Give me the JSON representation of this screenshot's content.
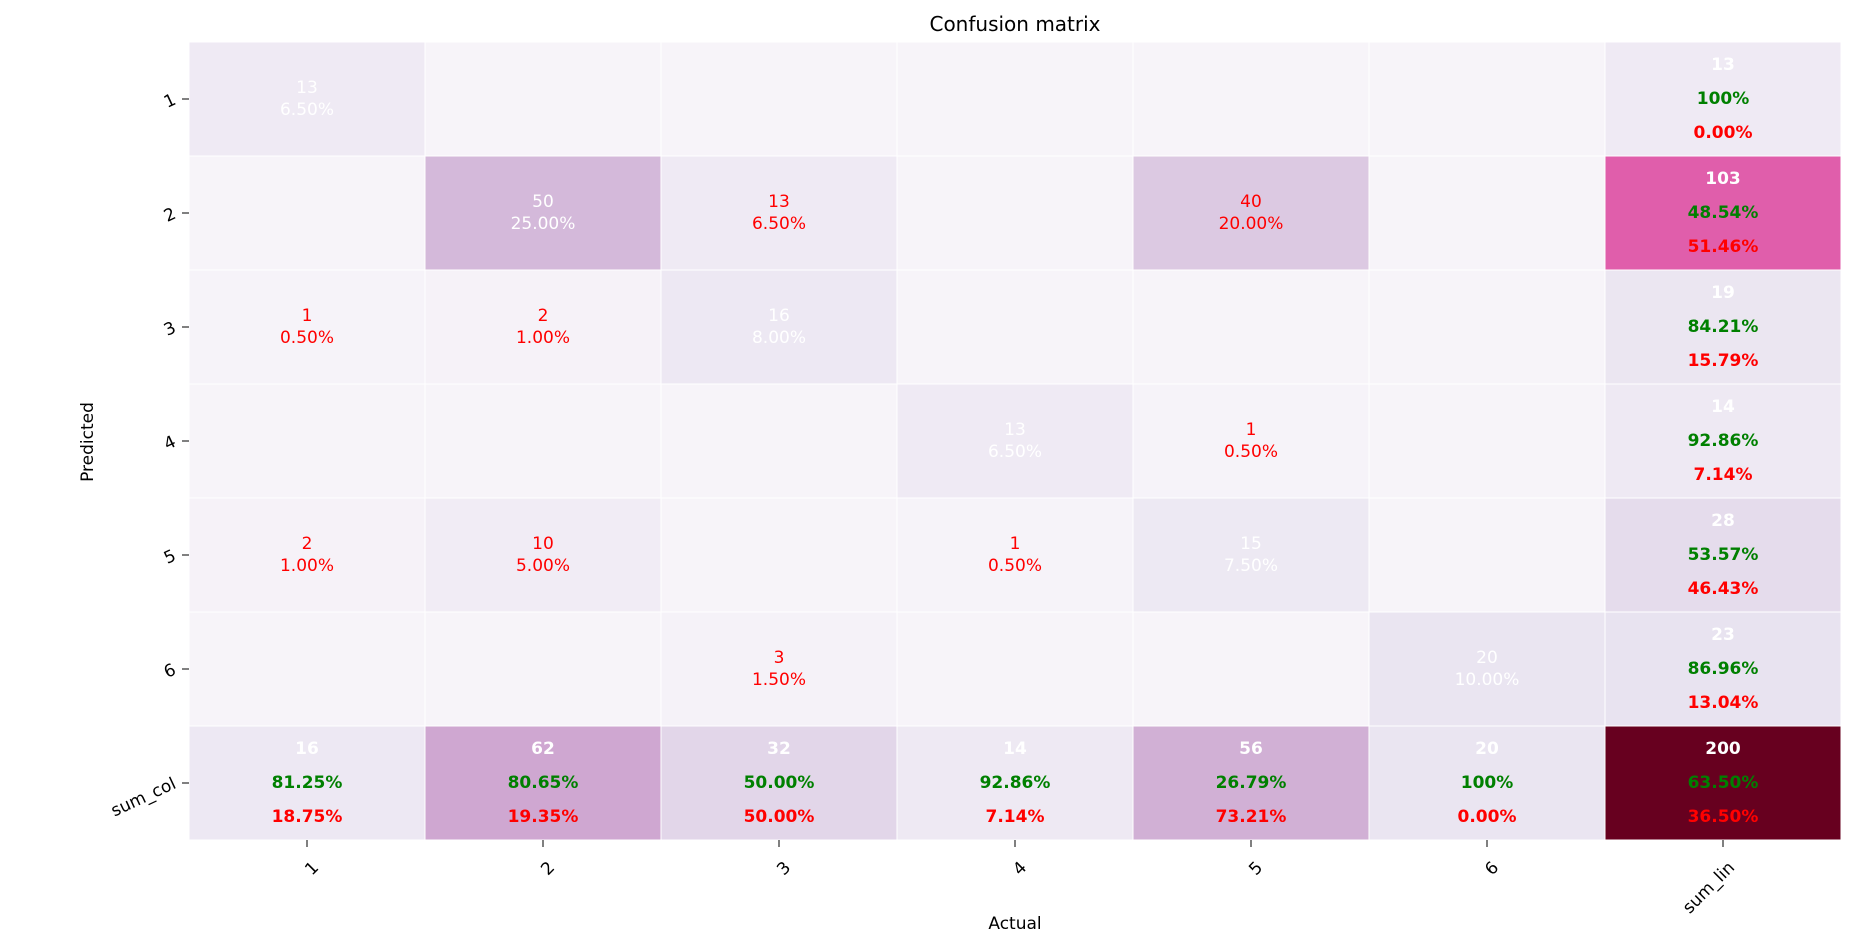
{
  "chart_data": {
    "type": "heatmap",
    "title": "Confusion matrix",
    "xlabel": "Actual",
    "ylabel": "Predicted",
    "x_tick_labels": [
      "1",
      "2",
      "3",
      "4",
      "5",
      "6",
      "sum_lin"
    ],
    "y_tick_labels": [
      "1",
      "2",
      "3",
      "4",
      "5",
      "6",
      "sum_col"
    ],
    "colormap": "PuRd",
    "colors": {
      "correct": "#008000",
      "error": "#ff0000",
      "light_text": "#ffffff",
      "diag_text": "#ffffff"
    },
    "cells": [
      [
        {
          "count": "13",
          "pct": "6.50%"
        },
        null,
        null,
        null,
        null,
        null
      ],
      [
        null,
        {
          "count": "50",
          "pct": "25.00%"
        },
        {
          "count": "13",
          "pct": "6.50%"
        },
        null,
        {
          "count": "40",
          "pct": "20.00%"
        },
        null
      ],
      [
        {
          "count": "1",
          "pct": "0.50%"
        },
        {
          "count": "2",
          "pct": "1.00%"
        },
        {
          "count": "16",
          "pct": "8.00%"
        },
        null,
        null,
        null
      ],
      [
        null,
        null,
        null,
        {
          "count": "13",
          "pct": "6.50%"
        },
        {
          "count": "1",
          "pct": "0.50%"
        },
        null
      ],
      [
        {
          "count": "2",
          "pct": "1.00%"
        },
        {
          "count": "10",
          "pct": "5.00%"
        },
        null,
        {
          "count": "1",
          "pct": "0.50%"
        },
        {
          "count": "15",
          "pct": "7.50%"
        },
        null
      ],
      [
        null,
        null,
        {
          "count": "3",
          "pct": "1.50%"
        },
        null,
        null,
        {
          "count": "20",
          "pct": "10.00%"
        }
      ]
    ],
    "sum_lin": [
      {
        "total": "13",
        "correct": "100%",
        "error": "0.00%"
      },
      {
        "total": "103",
        "correct": "48.54%",
        "error": "51.46%"
      },
      {
        "total": "19",
        "correct": "84.21%",
        "error": "15.79%"
      },
      {
        "total": "14",
        "correct": "92.86%",
        "error": "7.14%"
      },
      {
        "total": "28",
        "correct": "53.57%",
        "error": "46.43%"
      },
      {
        "total": "23",
        "correct": "86.96%",
        "error": "13.04%"
      }
    ],
    "sum_col": [
      {
        "total": "16",
        "correct": "81.25%",
        "error": "18.75%"
      },
      {
        "total": "62",
        "correct": "80.65%",
        "error": "19.35%"
      },
      {
        "total": "32",
        "correct": "50.00%",
        "error": "50.00%"
      },
      {
        "total": "14",
        "correct": "92.86%",
        "error": "7.14%"
      },
      {
        "total": "56",
        "correct": "26.79%",
        "error": "73.21%"
      },
      {
        "total": "20",
        "correct": "100%",
        "error": "0.00%"
      }
    ],
    "grand_total": {
      "total": "200",
      "correct": "63.50%",
      "error": "36.50%"
    }
  }
}
